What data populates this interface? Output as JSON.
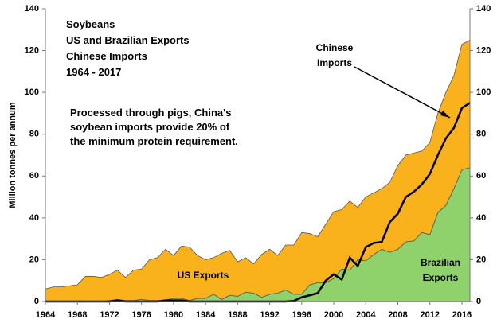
{
  "chart_data": {
    "type": "area",
    "title": "Soybeans",
    "subtitle_lines": [
      "US and Brazilian Exports",
      "Chinese Imports",
      "1964 - 2017"
    ],
    "note_lines": [
      "Processed through pigs, China's",
      "soybean imports provide 20% of",
      "the minimum protein requirement."
    ],
    "ylabel": "Million tonnes per annum",
    "x": [
      1964,
      1965,
      1966,
      1967,
      1968,
      1969,
      1970,
      1971,
      1972,
      1973,
      1974,
      1975,
      1976,
      1977,
      1978,
      1979,
      1980,
      1981,
      1982,
      1983,
      1984,
      1985,
      1986,
      1987,
      1988,
      1989,
      1990,
      1991,
      1992,
      1993,
      1994,
      1995,
      1996,
      1997,
      1998,
      1999,
      2000,
      2001,
      2002,
      2003,
      2004,
      2005,
      2006,
      2007,
      2008,
      2009,
      2010,
      2011,
      2012,
      2013,
      2014,
      2015,
      2016,
      2017
    ],
    "series": [
      {
        "name": "US Exports",
        "type": "area",
        "color": "#f9b21b",
        "values": [
          6,
          7,
          7,
          7.5,
          8,
          12,
          12,
          11.5,
          12.5,
          14,
          11,
          14.5,
          14.5,
          19.5,
          20.5,
          24.3,
          20.5,
          25,
          25.5,
          20.5,
          18.5,
          17.5,
          22,
          21.5,
          16.5,
          16.5,
          14,
          20.5,
          21.5,
          18,
          21.5,
          23.5,
          29.5,
          24.5,
          22,
          28,
          32,
          28.5,
          33,
          25,
          30.5,
          29.5,
          29,
          33.5,
          40,
          41.5,
          42,
          39,
          44,
          47.5,
          54,
          54,
          60,
          61
        ]
      },
      {
        "name": "Brazilian Exports",
        "type": "area",
        "color": "#8fd16a",
        "values": [
          0,
          0,
          0,
          0,
          0,
          0,
          0,
          0,
          0.5,
          1,
          0.5,
          0.5,
          1,
          0.5,
          0.5,
          0.7,
          1.5,
          1.5,
          0.5,
          1.5,
          1.5,
          3.5,
          1,
          3,
          2.5,
          4.5,
          4,
          2,
          3.5,
          4,
          5.5,
          3.5,
          3.5,
          8,
          9,
          9,
          11,
          15.5,
          15,
          20,
          19.5,
          22.5,
          25,
          23.5,
          25,
          28.5,
          29,
          33,
          32,
          42.5,
          46,
          54,
          63,
          64
        ]
      },
      {
        "name": "Chinese Imports",
        "type": "line",
        "color": "#000000",
        "values": [
          0,
          0,
          0,
          0,
          0,
          0,
          0,
          0,
          0,
          0.5,
          0,
          0,
          0,
          0,
          0,
          0.5,
          0.5,
          0.5,
          0,
          0,
          0,
          0,
          0,
          0,
          0,
          0,
          0,
          0,
          0,
          0,
          0,
          0.3,
          2,
          3,
          4,
          10,
          13,
          10.5,
          21,
          17,
          26,
          28,
          28.5,
          38,
          42,
          50,
          52.5,
          56,
          61,
          70,
          78,
          83,
          92.5,
          95
        ]
      }
    ],
    "stack_order": [
      1,
      0
    ],
    "xlim": [
      1964,
      2017
    ],
    "xticks": [
      1964,
      1968,
      1972,
      1976,
      1980,
      1984,
      1988,
      1992,
      1996,
      2000,
      2004,
      2008,
      2012,
      2016
    ],
    "ylim": [
      0,
      140
    ],
    "yticks": [
      0,
      20,
      40,
      60,
      80,
      100,
      120,
      140
    ],
    "y2lim": [
      0,
      140
    ],
    "y2ticks": [
      0,
      20,
      40,
      60,
      80,
      100,
      120,
      140
    ],
    "grid": false
  }
}
